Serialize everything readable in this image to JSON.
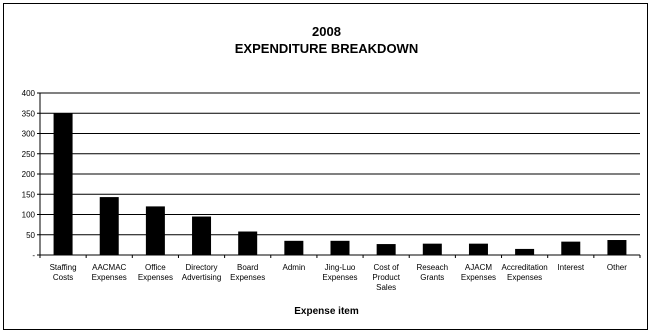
{
  "chart_data": {
    "type": "bar",
    "title_lines": [
      "2008",
      "EXPENDITURE BREAKDOWN"
    ],
    "xlabel": "Expense item",
    "ylabel": "",
    "ylim": [
      0,
      400
    ],
    "yticks": [
      {
        "value": 0,
        "label": "-"
      },
      {
        "value": 50,
        "label": "50"
      },
      {
        "value": 100,
        "label": "100"
      },
      {
        "value": 150,
        "label": "150"
      },
      {
        "value": 200,
        "label": "200"
      },
      {
        "value": 250,
        "label": "250"
      },
      {
        "value": 300,
        "label": "300"
      },
      {
        "value": 350,
        "label": "350"
      },
      {
        "value": 400,
        "label": "400"
      }
    ],
    "grid": true,
    "legend": "none",
    "bar_color": "#000000",
    "categories": [
      [
        "Staffing",
        "Costs"
      ],
      [
        "AACMAC",
        "Expenses"
      ],
      [
        "Office",
        "Expenses"
      ],
      [
        "Directory",
        "Advertising"
      ],
      [
        "Board",
        "Expenses"
      ],
      [
        "Admin"
      ],
      [
        "Jing-Luo",
        "Expenses"
      ],
      [
        "Cost of",
        "Product",
        "Sales"
      ],
      [
        "Reseach",
        "Grants"
      ],
      [
        "AJACM",
        "Expenses"
      ],
      [
        "Accreditation",
        "Expenses"
      ],
      [
        "Interest"
      ],
      [
        "Other"
      ]
    ],
    "values": [
      350,
      143,
      120,
      95,
      58,
      35,
      35,
      27,
      28,
      28,
      15,
      33,
      37
    ]
  }
}
